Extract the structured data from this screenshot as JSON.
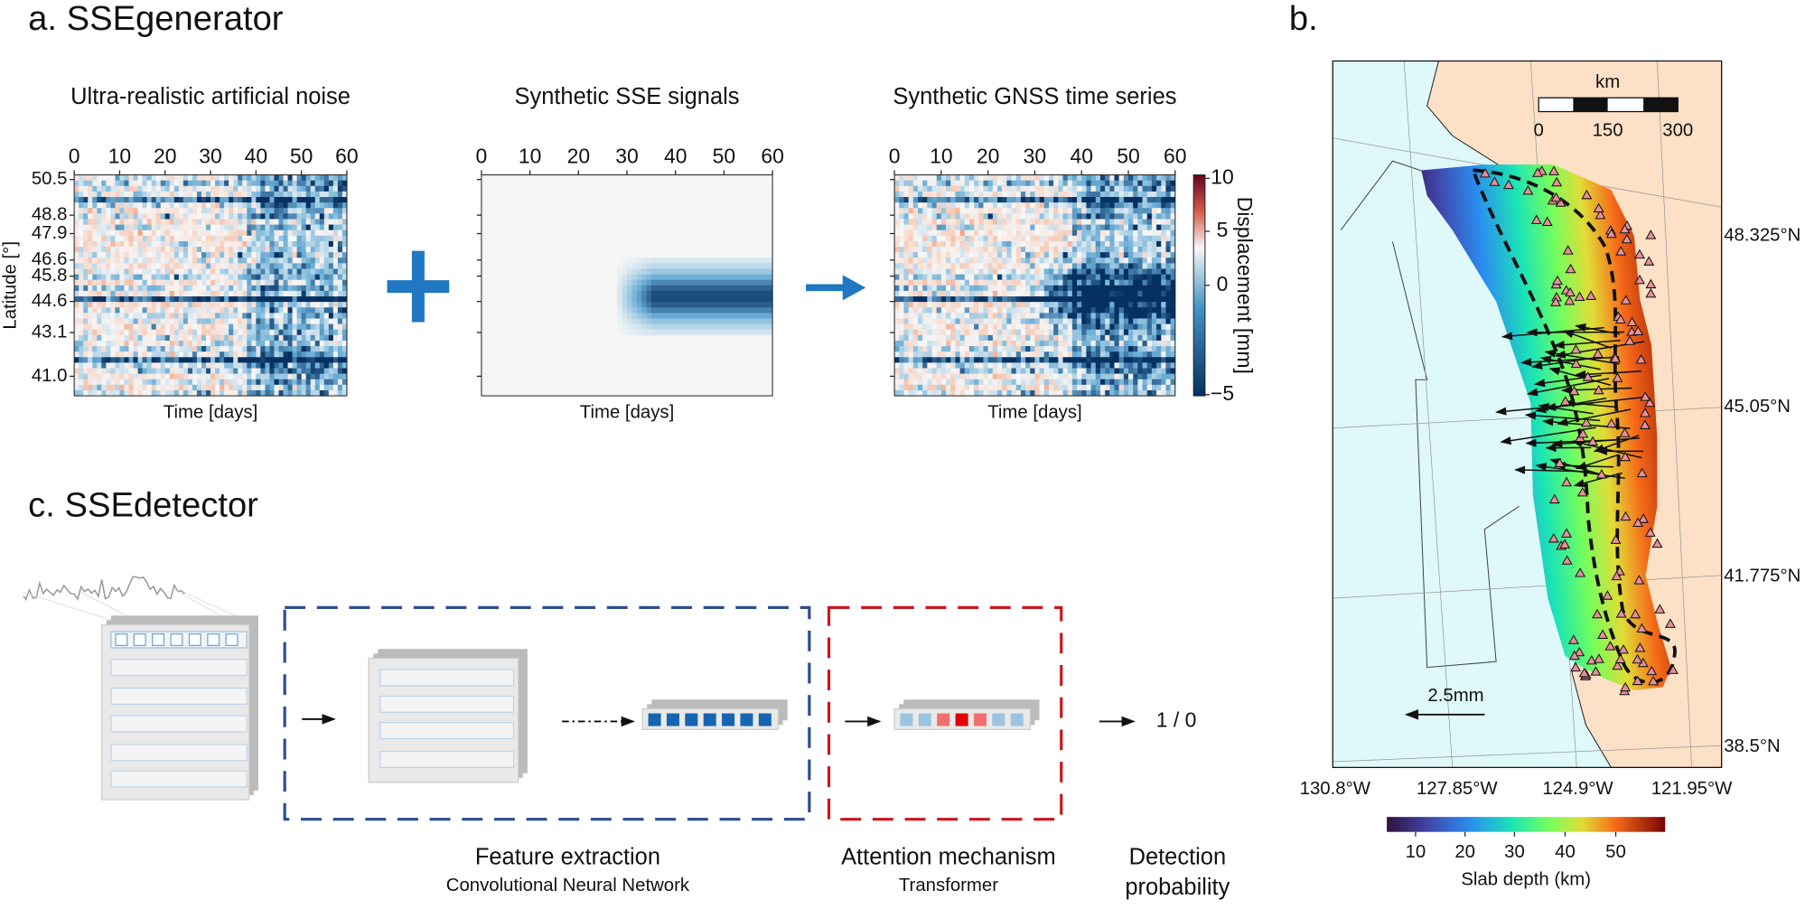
{
  "panel_a": {
    "label": "a. SSEgenerator",
    "panels": [
      {
        "title": "Ultra-realistic artificial noise",
        "xlabel": "Time [days]",
        "ylabel": "Latitude [°]",
        "xticks": [
          "0",
          "10",
          "20",
          "30",
          "40",
          "50",
          "60"
        ],
        "yticks": [
          "50.5",
          "48.8",
          "47.9",
          "46.6",
          "45.8",
          "44.6",
          "43.1",
          "41.0"
        ]
      },
      {
        "title": "Synthetic SSE signals",
        "xlabel": "Time [days]",
        "xticks": [
          "0",
          "10",
          "20",
          "30",
          "40",
          "50",
          "60"
        ]
      },
      {
        "title": "Synthetic GNSS time series",
        "xlabel": "Time [days]",
        "xticks": [
          "0",
          "10",
          "20",
          "30",
          "40",
          "50",
          "60"
        ]
      }
    ],
    "colorbar": {
      "label": "Displacement [mm]",
      "ticks": [
        "10",
        "5",
        "0",
        "−5"
      ]
    }
  },
  "panel_b": {
    "label": "b.",
    "scalebar_unit": "km",
    "scalebar_ticks": [
      "0",
      "150",
      "300"
    ],
    "lat_labels": [
      "48.325°N",
      "45.05°N",
      "41.775°N",
      "38.5°N"
    ],
    "lon_labels": [
      "130.8°W",
      "127.85°W",
      "124.9°W",
      "121.95°W"
    ],
    "vector_scale": "2.5mm",
    "colorbar": {
      "label": "Slab depth (km)",
      "ticks": [
        "10",
        "20",
        "30",
        "40",
        "50"
      ]
    }
  },
  "panel_c": {
    "label": "c. SSEdetector",
    "output": "1 / 0",
    "stages": [
      {
        "title": "Feature extraction",
        "subtitle": "Convolutional Neural Network"
      },
      {
        "title": "Attention mechanism",
        "subtitle": "Transformer"
      },
      {
        "title_lines": [
          "Detection",
          "probability"
        ]
      }
    ]
  }
}
